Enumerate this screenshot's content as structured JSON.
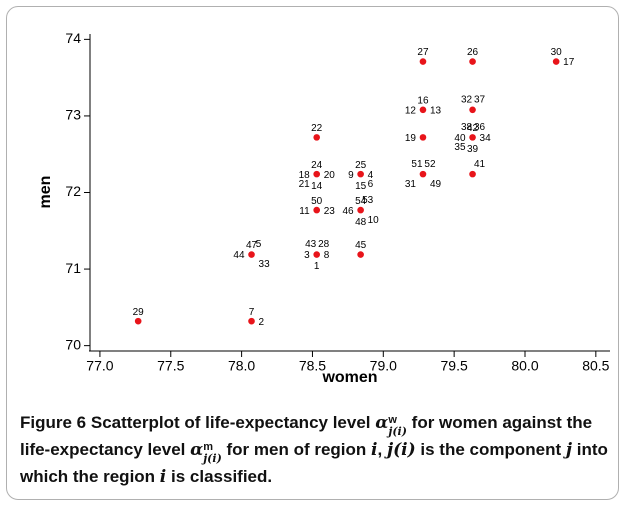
{
  "chart_data": {
    "type": "scatter",
    "xlabel": "women",
    "ylabel": "men",
    "xlim": [
      76.93,
      80.6
    ],
    "ylim": [
      69.93,
      74.07
    ],
    "xticks": [
      {
        "value": 77,
        "label": "77.0"
      },
      {
        "value": 77.5,
        "label": "77.5"
      },
      {
        "value": 78,
        "label": "78.0"
      },
      {
        "value": 78.5,
        "label": "78.5"
      },
      {
        "value": 79,
        "label": "79.0"
      },
      {
        "value": 79.5,
        "label": "79.5"
      },
      {
        "value": 80,
        "label": "80.0"
      },
      {
        "value": 80.5,
        "label": "80.5"
      }
    ],
    "yticks": [
      70,
      71,
      72,
      73,
      74
    ],
    "x": [
      77.27,
      78.07,
      78.07,
      78.53,
      78.84,
      78.53,
      78.84,
      78.53,
      78.84,
      78.53,
      79.28,
      79.63,
      79.28,
      79.63,
      79.28,
      79.63,
      79.28,
      79.63,
      80.22
    ],
    "series": [
      {
        "color": "#e8141a",
        "values": [
          70.32,
          70.32,
          71.19,
          71.19,
          71.19,
          71.77,
          71.77,
          72.24,
          72.24,
          72.72,
          72.24,
          72.24,
          72.72,
          72.72,
          73.08,
          73.08,
          73.71,
          73.71,
          73.71
        ]
      }
    ],
    "point_labels": [
      [
        "29"
      ],
      [
        "7",
        "2"
      ],
      [
        "47",
        "5",
        "44",
        "33"
      ],
      [
        "43",
        "28",
        "3",
        "8",
        "1"
      ],
      [
        "45"
      ],
      [
        "50",
        "11",
        "23"
      ],
      [
        "54",
        "53",
        "46",
        "10",
        "48"
      ],
      [
        "24",
        "18",
        "20",
        "21",
        "14"
      ],
      [
        "25",
        "4",
        "9",
        "15",
        "6"
      ],
      [
        "22"
      ],
      [
        "51",
        "52",
        "31",
        "49"
      ],
      [
        "41"
      ],
      [
        "19"
      ],
      [
        "38",
        "42",
        "36",
        "40",
        "34",
        "35",
        "39"
      ],
      [
        "16",
        "12",
        "13"
      ],
      [
        "32",
        "37"
      ],
      [
        "27"
      ],
      [
        "26"
      ],
      [
        "30",
        "17"
      ]
    ]
  },
  "caption": {
    "label": "Figure 6",
    "parts": [
      "Scatterplot of life-expectancy level",
      "α",
      "w",
      "j(i)",
      "for women against the life-expectancy level",
      "α",
      "m",
      "j(i)",
      "for men of region",
      "i",
      ",",
      "j(i)",
      "is the component",
      "j",
      "into which the region",
      "i",
      "is classified."
    ]
  }
}
